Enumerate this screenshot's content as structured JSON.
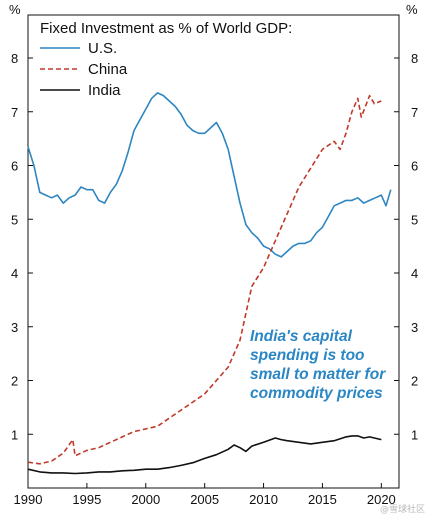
{
  "watermark": "@雪球社区",
  "chart_data": {
    "type": "line",
    "title": "Fixed Investment as % of World GDP:",
    "y_unit_left": "%",
    "y_unit_right": "%",
    "xlim": [
      1990,
      2021.5
    ],
    "ylim": [
      0,
      8.8
    ],
    "x_ticks": [
      1990,
      1995,
      2000,
      2005,
      2010,
      2015,
      2020
    ],
    "y_ticks": [
      1,
      2,
      3,
      4,
      5,
      6,
      7,
      8
    ],
    "grid": false,
    "legend_position": "top-left",
    "annotation": {
      "lines": [
        "India's capital",
        "spending is too",
        "small to matter for",
        "commodity prices"
      ],
      "color": "#2b86c5"
    },
    "series": [
      {
        "name": "U.S.",
        "color": "#2e86c1",
        "dash": "solid",
        "points": [
          [
            1990,
            6.35
          ],
          [
            1990.5,
            6.0
          ],
          [
            1991,
            5.5
          ],
          [
            1991.5,
            5.45
          ],
          [
            1992,
            5.4
          ],
          [
            1992.5,
            5.45
          ],
          [
            1993,
            5.3
          ],
          [
            1993.5,
            5.4
          ],
          [
            1994,
            5.45
          ],
          [
            1994.5,
            5.6
          ],
          [
            1995,
            5.55
          ],
          [
            1995.5,
            5.55
          ],
          [
            1996,
            5.35
          ],
          [
            1996.5,
            5.3
          ],
          [
            1997,
            5.5
          ],
          [
            1997.5,
            5.65
          ],
          [
            1998,
            5.9
          ],
          [
            1998.5,
            6.25
          ],
          [
            1999,
            6.65
          ],
          [
            1999.5,
            6.85
          ],
          [
            2000,
            7.05
          ],
          [
            2000.5,
            7.25
          ],
          [
            2001,
            7.35
          ],
          [
            2001.5,
            7.3
          ],
          [
            2002,
            7.2
          ],
          [
            2002.5,
            7.1
          ],
          [
            2003,
            6.95
          ],
          [
            2003.5,
            6.75
          ],
          [
            2004,
            6.65
          ],
          [
            2004.5,
            6.6
          ],
          [
            2005,
            6.6
          ],
          [
            2005.5,
            6.7
          ],
          [
            2006,
            6.8
          ],
          [
            2006.5,
            6.6
          ],
          [
            2007,
            6.3
          ],
          [
            2007.5,
            5.8
          ],
          [
            2008,
            5.3
          ],
          [
            2008.5,
            4.9
          ],
          [
            2009,
            4.75
          ],
          [
            2009.5,
            4.65
          ],
          [
            2010,
            4.5
          ],
          [
            2010.5,
            4.45
          ],
          [
            2011,
            4.35
          ],
          [
            2011.5,
            4.3
          ],
          [
            2012,
            4.4
          ],
          [
            2012.5,
            4.5
          ],
          [
            2013,
            4.55
          ],
          [
            2013.5,
            4.55
          ],
          [
            2014,
            4.6
          ],
          [
            2014.5,
            4.75
          ],
          [
            2015,
            4.85
          ],
          [
            2015.5,
            5.05
          ],
          [
            2016,
            5.25
          ],
          [
            2016.5,
            5.3
          ],
          [
            2017,
            5.35
          ],
          [
            2017.5,
            5.35
          ],
          [
            2018,
            5.4
          ],
          [
            2018.5,
            5.3
          ],
          [
            2019,
            5.35
          ],
          [
            2019.5,
            5.4
          ],
          [
            2020,
            5.45
          ],
          [
            2020.4,
            5.25
          ],
          [
            2020.8,
            5.55
          ]
        ]
      },
      {
        "name": "China",
        "color": "#c0392b",
        "dash": "dashed",
        "points": [
          [
            1990,
            0.48
          ],
          [
            1991,
            0.45
          ],
          [
            1992,
            0.5
          ],
          [
            1993,
            0.65
          ],
          [
            1993.8,
            0.9
          ],
          [
            1994,
            0.6
          ],
          [
            1995,
            0.7
          ],
          [
            1996,
            0.75
          ],
          [
            1997,
            0.85
          ],
          [
            1998,
            0.95
          ],
          [
            1999,
            1.05
          ],
          [
            2000,
            1.1
          ],
          [
            2001,
            1.15
          ],
          [
            2002,
            1.3
          ],
          [
            2003,
            1.45
          ],
          [
            2004,
            1.6
          ],
          [
            2005,
            1.75
          ],
          [
            2006,
            2.0
          ],
          [
            2007,
            2.25
          ],
          [
            2008,
            2.75
          ],
          [
            2009,
            3.75
          ],
          [
            2010,
            4.1
          ],
          [
            2011,
            4.6
          ],
          [
            2012,
            5.1
          ],
          [
            2013,
            5.6
          ],
          [
            2014,
            5.95
          ],
          [
            2015,
            6.3
          ],
          [
            2016,
            6.45
          ],
          [
            2016.5,
            6.3
          ],
          [
            2017,
            6.6
          ],
          [
            2017.5,
            7.0
          ],
          [
            2018,
            7.25
          ],
          [
            2018.3,
            6.9
          ],
          [
            2019,
            7.3
          ],
          [
            2019.4,
            7.15
          ],
          [
            2020,
            7.2
          ]
        ]
      },
      {
        "name": "India",
        "color": "#111111",
        "dash": "solid",
        "points": [
          [
            1990,
            0.35
          ],
          [
            1991,
            0.3
          ],
          [
            1992,
            0.28
          ],
          [
            1993,
            0.28
          ],
          [
            1994,
            0.27
          ],
          [
            1995,
            0.28
          ],
          [
            1996,
            0.3
          ],
          [
            1997,
            0.3
          ],
          [
            1998,
            0.32
          ],
          [
            1999,
            0.33
          ],
          [
            2000,
            0.35
          ],
          [
            2001,
            0.35
          ],
          [
            2002,
            0.38
          ],
          [
            2003,
            0.42
          ],
          [
            2004,
            0.47
          ],
          [
            2005,
            0.55
          ],
          [
            2006,
            0.62
          ],
          [
            2007,
            0.72
          ],
          [
            2007.5,
            0.8
          ],
          [
            2008,
            0.75
          ],
          [
            2008.5,
            0.68
          ],
          [
            2009,
            0.78
          ],
          [
            2010,
            0.85
          ],
          [
            2011,
            0.93
          ],
          [
            2011.5,
            0.9
          ],
          [
            2012,
            0.88
          ],
          [
            2013,
            0.85
          ],
          [
            2014,
            0.82
          ],
          [
            2015,
            0.85
          ],
          [
            2016,
            0.88
          ],
          [
            2017,
            0.95
          ],
          [
            2017.5,
            0.97
          ],
          [
            2018,
            0.97
          ],
          [
            2018.5,
            0.93
          ],
          [
            2019,
            0.95
          ],
          [
            2020,
            0.9
          ]
        ]
      }
    ]
  }
}
